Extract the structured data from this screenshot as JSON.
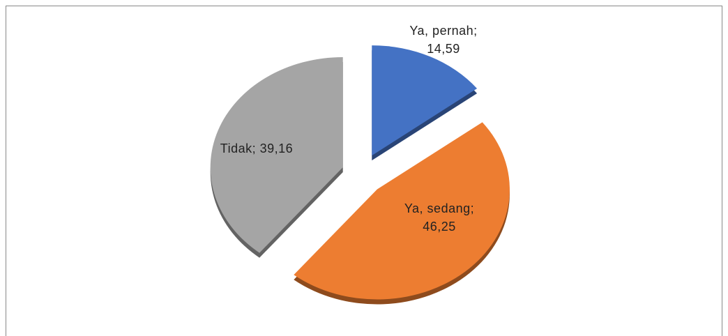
{
  "chart_data": {
    "type": "pie",
    "values": [
      14.59,
      46.25,
      39.16
    ],
    "data_labels": [
      [
        "Ya, pernah;",
        "14,59"
      ],
      [
        "Ya, sedang;",
        "46,25"
      ],
      [
        "Tidak; 39,16"
      ]
    ],
    "colors": [
      "#4472c4",
      "#ed7d31",
      "#a5a5a5"
    ]
  }
}
